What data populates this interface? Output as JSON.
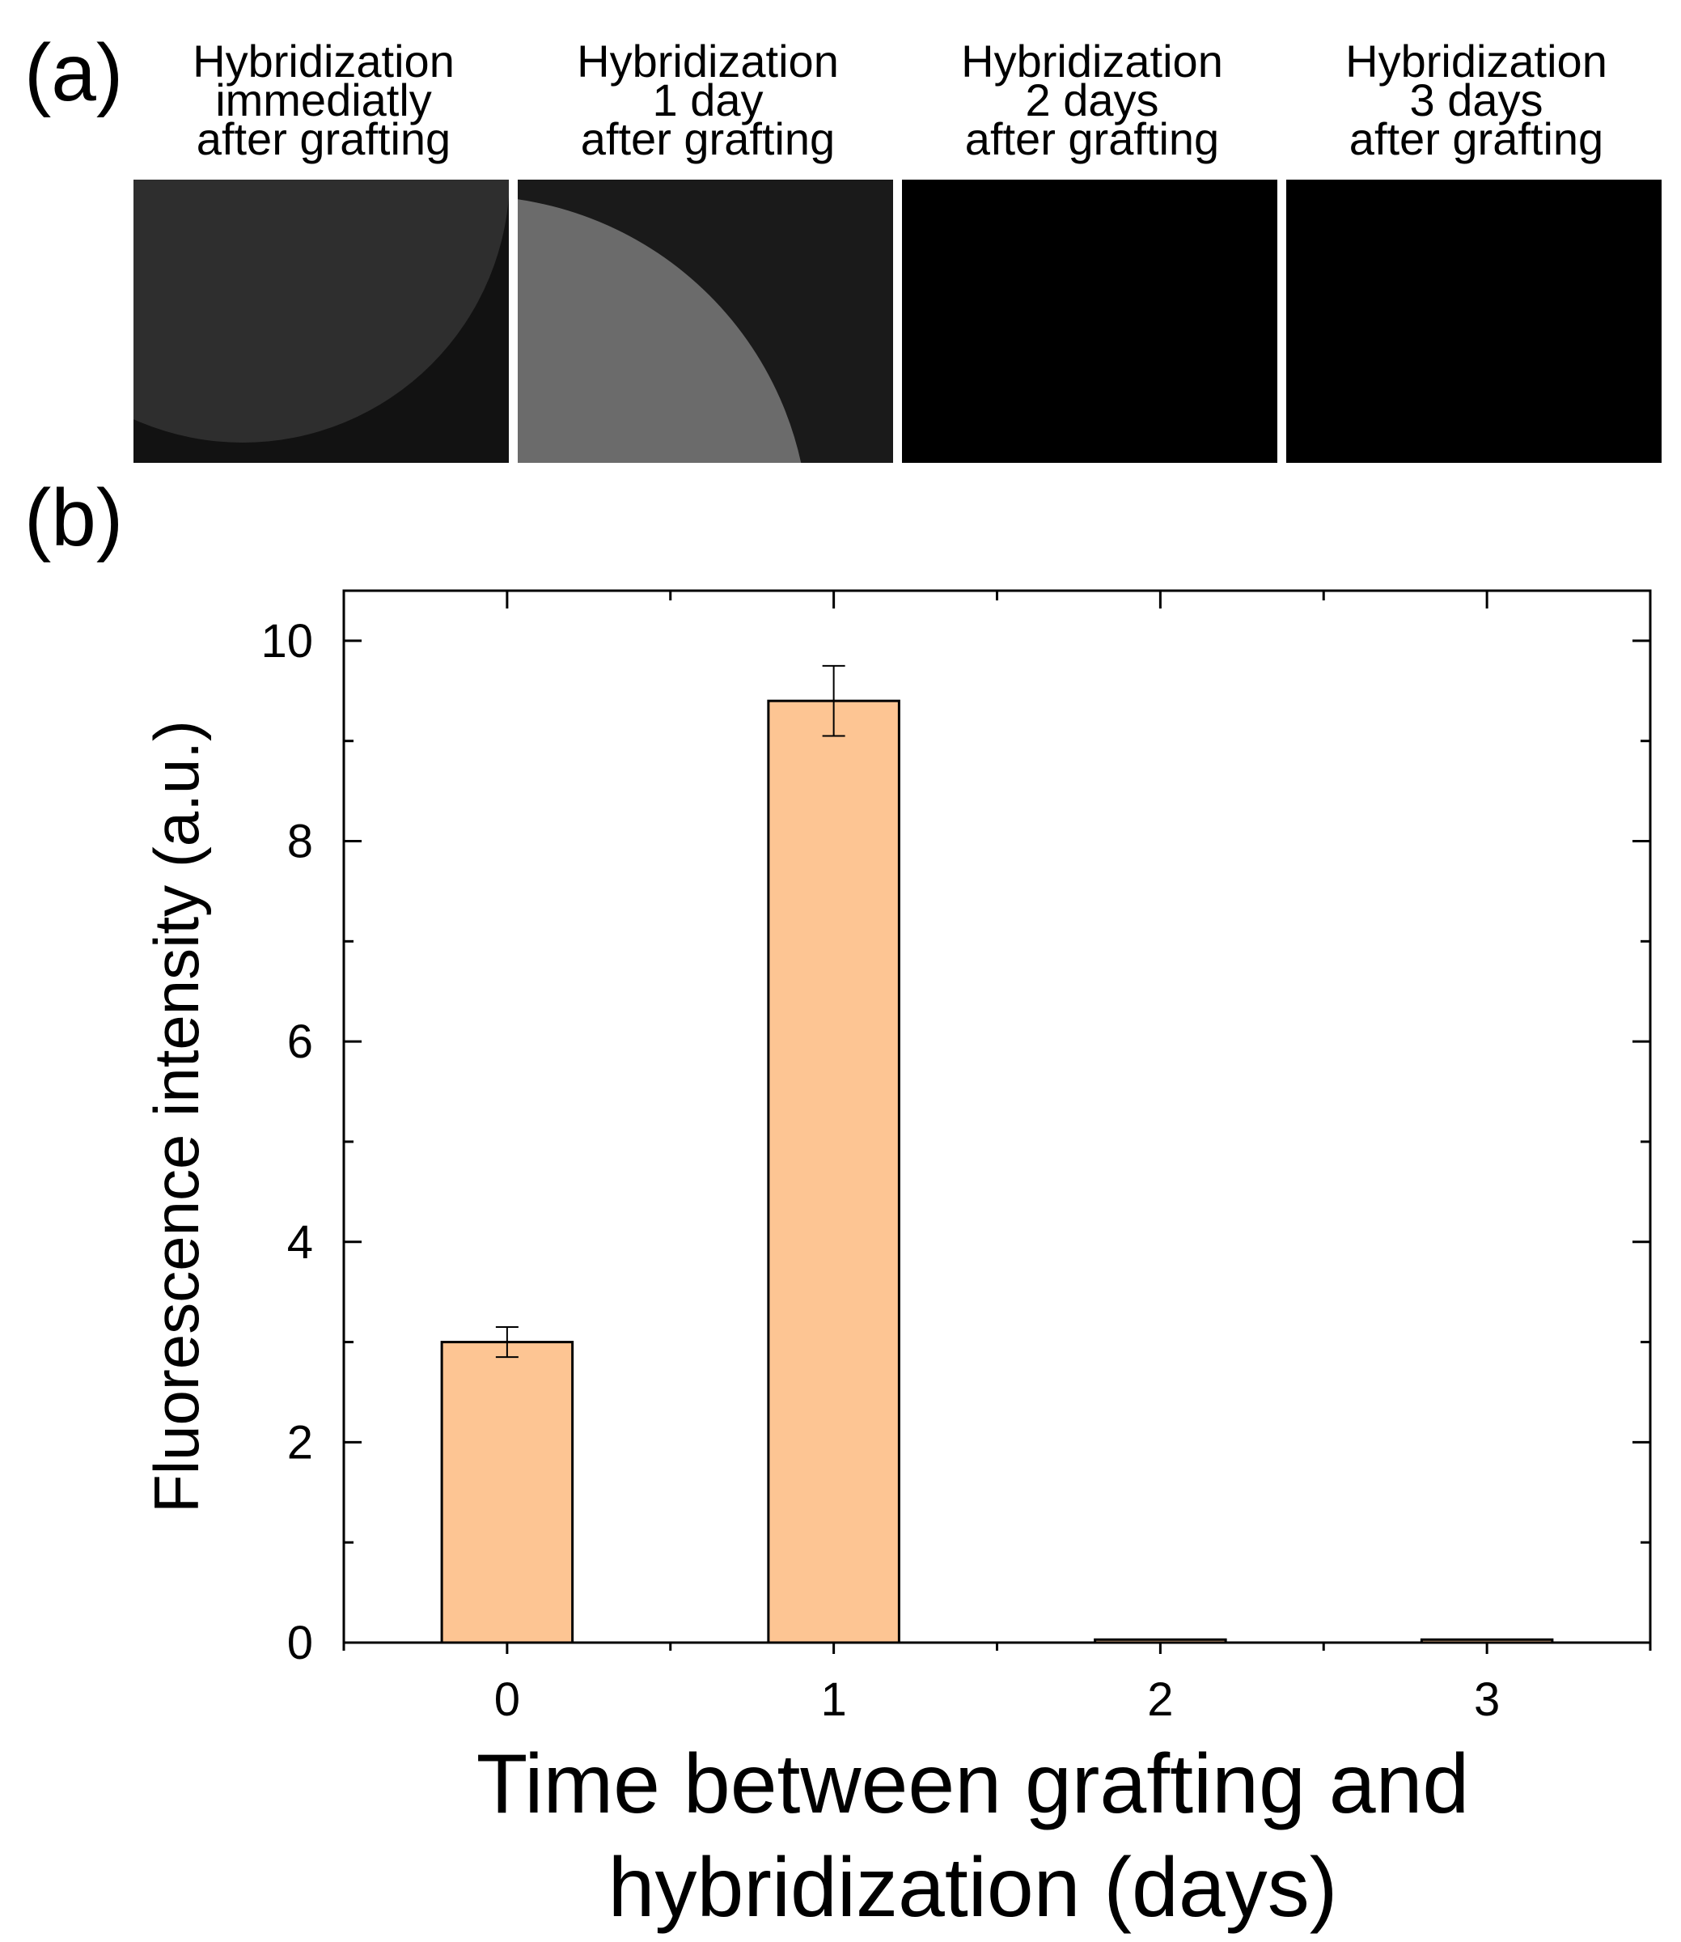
{
  "figure": {
    "panel_a_label": "(a)",
    "panel_b_label": "(b)"
  },
  "images": [
    {
      "caption": [
        "Hybridization",
        "immediatly",
        "after grafting"
      ],
      "tone": "#2b2b2b"
    },
    {
      "caption": [
        "Hybridization",
        "1 day",
        "after grafting"
      ],
      "tone": "#6a6a6a"
    },
    {
      "caption": [
        "Hybridization",
        "2 days",
        "after grafting"
      ],
      "tone": "#000000"
    },
    {
      "caption": [
        "Hybridization",
        "3 days",
        "after grafting"
      ],
      "tone": "#000000"
    }
  ],
  "chart_data": {
    "type": "bar",
    "categories": [
      "0",
      "1",
      "2",
      "3"
    ],
    "values": [
      3.0,
      9.4,
      0.03,
      0.03
    ],
    "errors": [
      0.15,
      0.35,
      0,
      0
    ],
    "xlabel": "Time between grafting and hybridization (days)",
    "xlabel_lines": [
      "Time between grafting and",
      "hybridization (days)"
    ],
    "ylabel": "Fluorescence intensity (a.u.)",
    "ylim": [
      0,
      10.5
    ],
    "yticks": [
      "0",
      "2",
      "4",
      "6",
      "8",
      "10"
    ],
    "bar_color": "#fdc593",
    "grid": false,
    "legend": "none"
  }
}
